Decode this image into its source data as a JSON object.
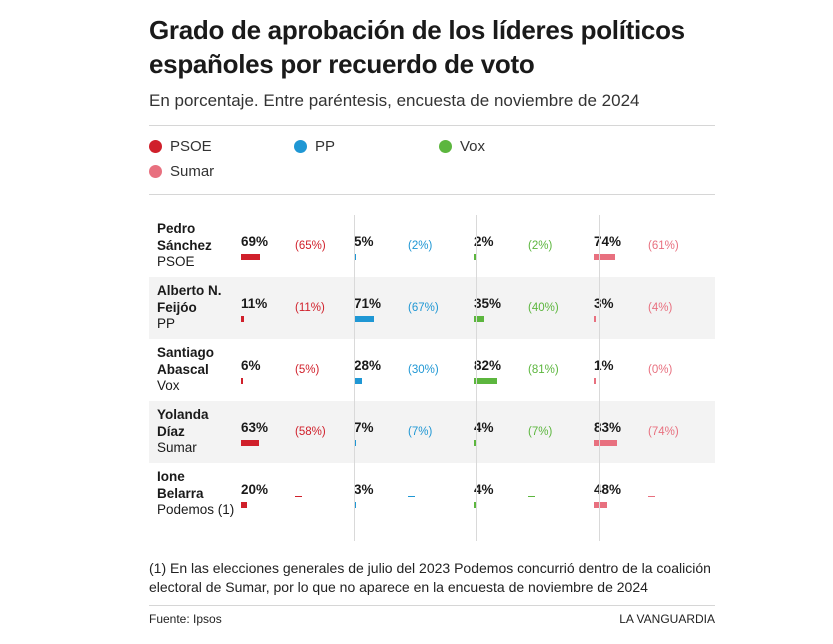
{
  "title": "Grado de aprobación de los líderes políticos españoles por recuerdo de voto",
  "subtitle": "En porcentaje. Entre paréntesis, encuesta de noviembre de 2024",
  "note": "(1) En las elecciones generales de julio del 2023 Podemos concurrió dentro de la coalición electoral de Sumar, por lo que no aparece en la encuesta de noviembre de 2024",
  "source": "Fuente: Ipsos",
  "brand": "LA VANGUARDIA",
  "colors": {
    "PSOE": "#d0202b",
    "PP": "#1f97d4",
    "Vox": "#5cb63e",
    "Sumar": "#e8707f"
  },
  "chart_data": {
    "type": "table",
    "series": [
      {
        "name": "PSOE",
        "color": "#d0202b"
      },
      {
        "name": "PP",
        "color": "#1f97d4"
      },
      {
        "name": "Vox",
        "color": "#5cb63e"
      },
      {
        "name": "Sumar",
        "color": "#e8707f"
      }
    ],
    "rows": [
      {
        "leader": "Pedro Sánchez",
        "party": "PSOE",
        "values": [
          69,
          5,
          2,
          74
        ],
        "values_text": [
          "69%",
          "5%",
          "2%",
          "74%"
        ],
        "previous_text": [
          "(65%)",
          "(2%)",
          "(2%)",
          "(61%)"
        ]
      },
      {
        "leader": "Alberto N. Feijóo",
        "party": "PP",
        "values": [
          11,
          71,
          35,
          3
        ],
        "values_text": [
          "11%",
          "71%",
          "35%",
          "3%"
        ],
        "previous_text": [
          "(11%)",
          "(67%)",
          "(40%)",
          "(4%)"
        ]
      },
      {
        "leader": "Santiago Abascal",
        "party": "Vox",
        "values": [
          6,
          28,
          82,
          1
        ],
        "values_text": [
          "6%",
          "28%",
          "82%",
          "1%"
        ],
        "previous_text": [
          "(5%)",
          "(30%)",
          "(81%)",
          "(0%)"
        ]
      },
      {
        "leader": "Yolanda Díaz",
        "party": "Sumar",
        "values": [
          63,
          7,
          4,
          83
        ],
        "values_text": [
          "63%",
          "7%",
          "4%",
          "83%"
        ],
        "previous_text": [
          "(58%)",
          "(7%)",
          "(7%)",
          "(74%)"
        ]
      },
      {
        "leader": "Ione Belarra",
        "party": "Podemos (1)",
        "values": [
          20,
          3,
          4,
          48
        ],
        "values_text": [
          "20%",
          "3%",
          "4%",
          "48%"
        ],
        "previous_text": [
          null,
          null,
          null,
          null
        ]
      }
    ],
    "xlim": [
      0,
      100
    ]
  }
}
